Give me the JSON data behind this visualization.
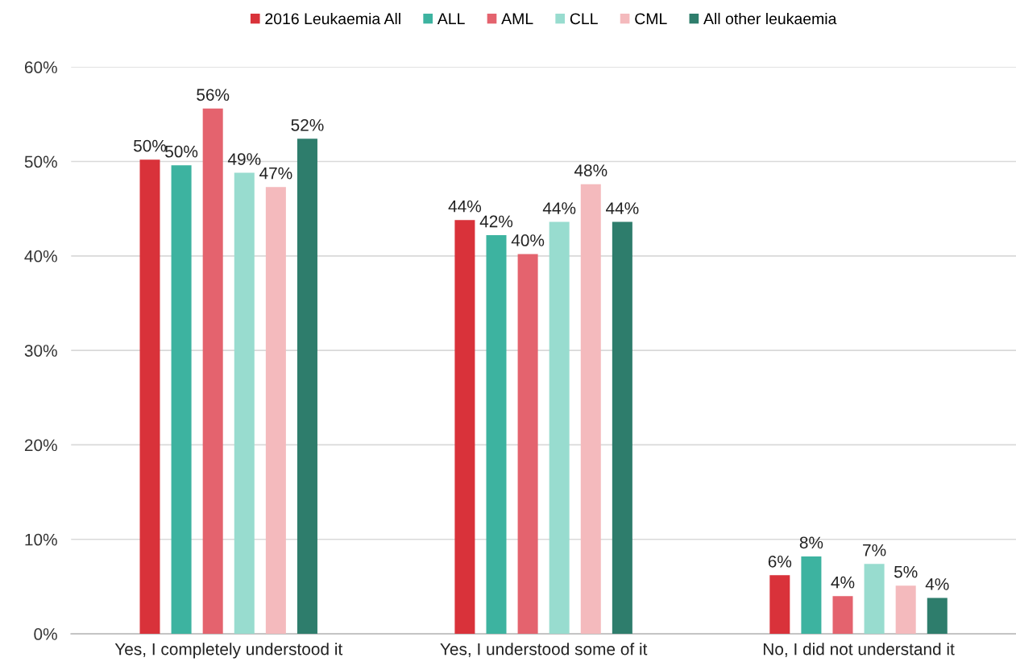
{
  "chart_data": {
    "type": "bar",
    "categories": [
      "Yes, I completely understood it",
      "Yes, I understood some of it",
      "No, I did not understand it"
    ],
    "series": [
      {
        "name": "2016 Leukaemia All",
        "color": "#d9323a",
        "values": [
          50.2,
          43.8,
          6.2
        ],
        "value_labels": [
          "50%",
          "44%",
          "6%"
        ]
      },
      {
        "name": "ALL",
        "color": "#3db3a0",
        "values": [
          49.6,
          42.2,
          8.2
        ],
        "value_labels": [
          "50%",
          "42%",
          "8%"
        ]
      },
      {
        "name": "AML",
        "color": "#e4636e",
        "values": [
          55.6,
          40.2,
          4.0
        ],
        "value_labels": [
          "56%",
          "40%",
          "4%"
        ]
      },
      {
        "name": "CLL",
        "color": "#98dccf",
        "values": [
          48.8,
          43.6,
          7.4
        ],
        "value_labels": [
          "49%",
          "44%",
          "7%"
        ]
      },
      {
        "name": "CML",
        "color": "#f4babd",
        "values": [
          47.3,
          47.6,
          5.1
        ],
        "value_labels": [
          "47%",
          "48%",
          "5%"
        ]
      },
      {
        "name": "All other leukaemia",
        "color": "#2e7d6c",
        "values": [
          52.4,
          43.6,
          3.8
        ],
        "value_labels": [
          "52%",
          "44%",
          "4%"
        ]
      }
    ],
    "ylim": [
      0,
      60
    ],
    "yticks": [
      {
        "value": 0,
        "label": "0%"
      },
      {
        "value": 10,
        "label": "10%"
      },
      {
        "value": 20,
        "label": "20%"
      },
      {
        "value": 30,
        "label": "30%"
      },
      {
        "value": 40,
        "label": "40%"
      },
      {
        "value": 50,
        "label": "50%"
      },
      {
        "value": 60,
        "label": "60%"
      }
    ],
    "grid": "y",
    "legend": "top"
  }
}
